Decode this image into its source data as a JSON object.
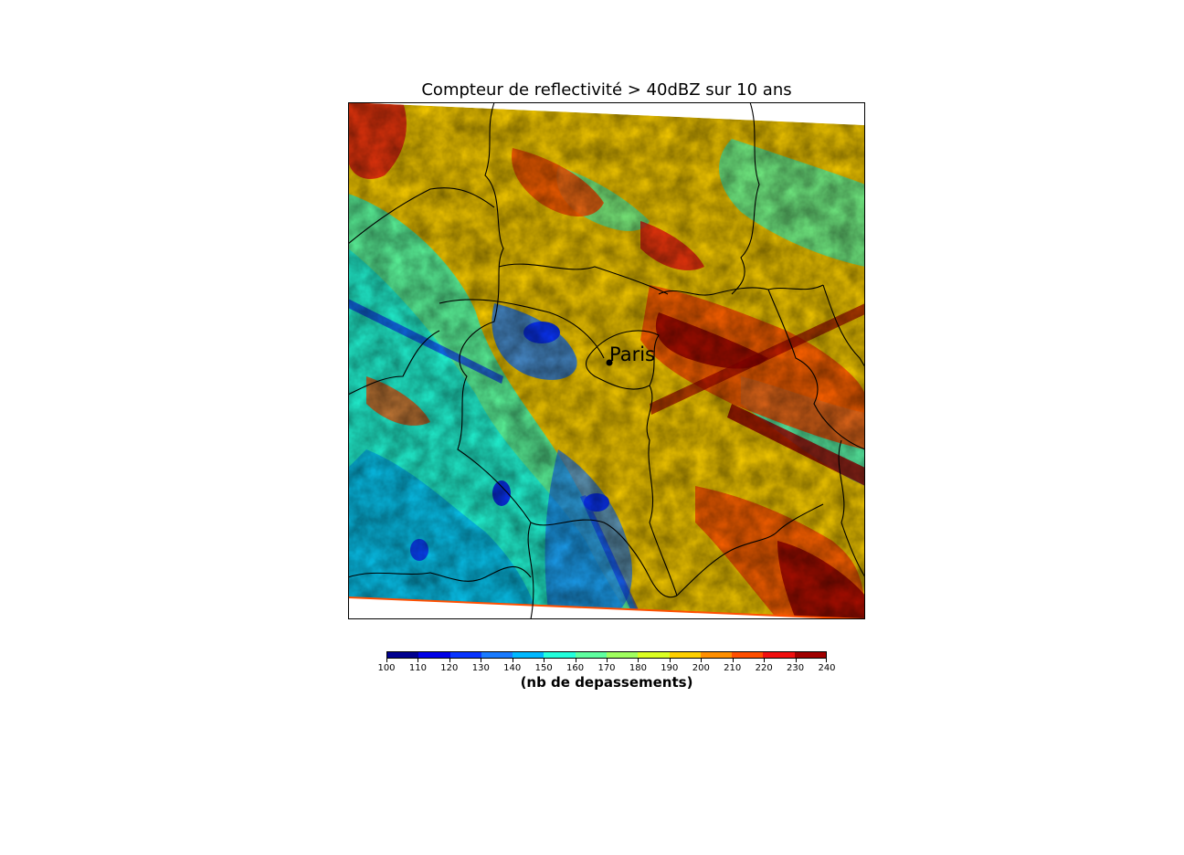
{
  "title": "Compteur de reflectivité > 40dBZ sur 10 ans",
  "city_label": "Paris",
  "colorbar": {
    "label": "(nb de depassements)",
    "ticks": [
      "100",
      "110",
      "120",
      "130",
      "140",
      "150",
      "160",
      "170",
      "180",
      "190",
      "200",
      "210",
      "220",
      "230",
      "240"
    ],
    "colors": [
      "#00008f",
      "#0000e6",
      "#0a35ff",
      "#1a7bff",
      "#00b8ff",
      "#23ffdc",
      "#5fffa0",
      "#a0ff5f",
      "#dcff23",
      "#ffd000",
      "#ff8f00",
      "#ff4f00",
      "#f01010",
      "#a00000"
    ]
  }
}
